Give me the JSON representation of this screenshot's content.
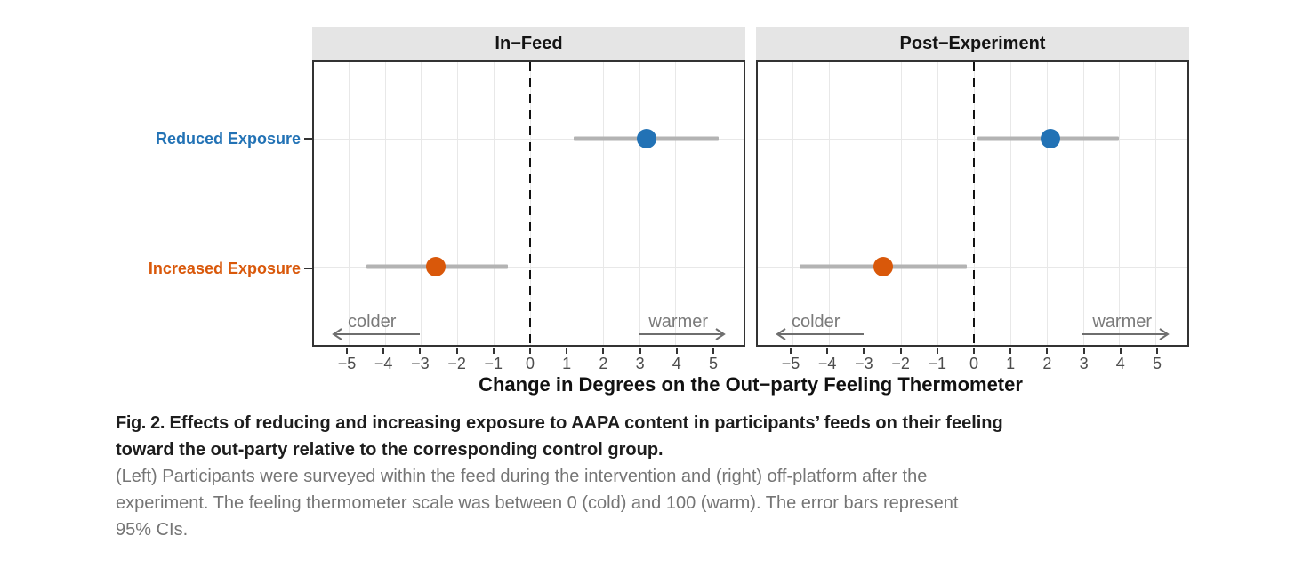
{
  "chart_data": {
    "type": "scatter",
    "subtype": "pointrange-forest-plot",
    "xlabel": "Change in Degrees on the Out−party Feeling Thermometer",
    "xticks": [
      -5,
      -4,
      -3,
      -2,
      -1,
      0,
      1,
      2,
      3,
      4,
      5
    ],
    "xlim": [
      -5.95,
      5.87
    ],
    "zero_reference_line": 0,
    "grid": true,
    "legend_position": "none",
    "groups": [
      {
        "label": "Reduced Exposure",
        "color": "#2272b5"
      },
      {
        "label": "Increased Exposure",
        "color": "#d9580a"
      }
    ],
    "panels": [
      {
        "title": "In−Feed",
        "points": [
          {
            "group": "Reduced Exposure",
            "estimate": 3.2,
            "ci_low": 1.2,
            "ci_high": 5.2
          },
          {
            "group": "Increased Exposure",
            "estimate": -2.6,
            "ci_low": -4.5,
            "ci_high": -0.6
          }
        ]
      },
      {
        "title": "Post−Experiment",
        "points": [
          {
            "group": "Reduced Exposure",
            "estimate": 2.1,
            "ci_low": 0.1,
            "ci_high": 4.0
          },
          {
            "group": "Increased Exposure",
            "estimate": -2.5,
            "ci_low": -4.8,
            "ci_high": -0.2
          }
        ]
      }
    ],
    "annotations": {
      "colder_label": "colder",
      "warmer_label": "warmer",
      "colder_center_x": -4.35,
      "warmer_center_x": 4.08,
      "colder_arrow_span": [
        -5.46,
        -3.03
      ],
      "warmer_arrow_span": [
        2.9,
        5.3
      ]
    },
    "error_bar_meaning": "95% CIs"
  },
  "caption": {
    "label": "Fig. 2.",
    "bold_line1": "Effects of reducing and increasing exposure to AAPA content in participants’ feeds on their feeling",
    "bold_line2": "toward the out-party relative to the corresponding control group.",
    "gray_line1": "(Left) Participants were surveyed within the feed during the intervention and (right) off-platform after the",
    "gray_line2": "experiment. The feeling thermometer scale was between 0 (cold) and 100 (warm). The error bars represent",
    "gray_line3": "95% CIs."
  },
  "colors": {
    "reduced_blue": "#2272b5",
    "increased_orange": "#d9580a",
    "error_bar_gray": "#b3b3b3",
    "strip_background": "#e5e5e5",
    "panel_border": "#333333",
    "gridline": "#e8e8e8",
    "tick_label_gray": "#4d4d4d",
    "annotation_gray": "#7a7a7a",
    "caption_gray": "#757575"
  }
}
